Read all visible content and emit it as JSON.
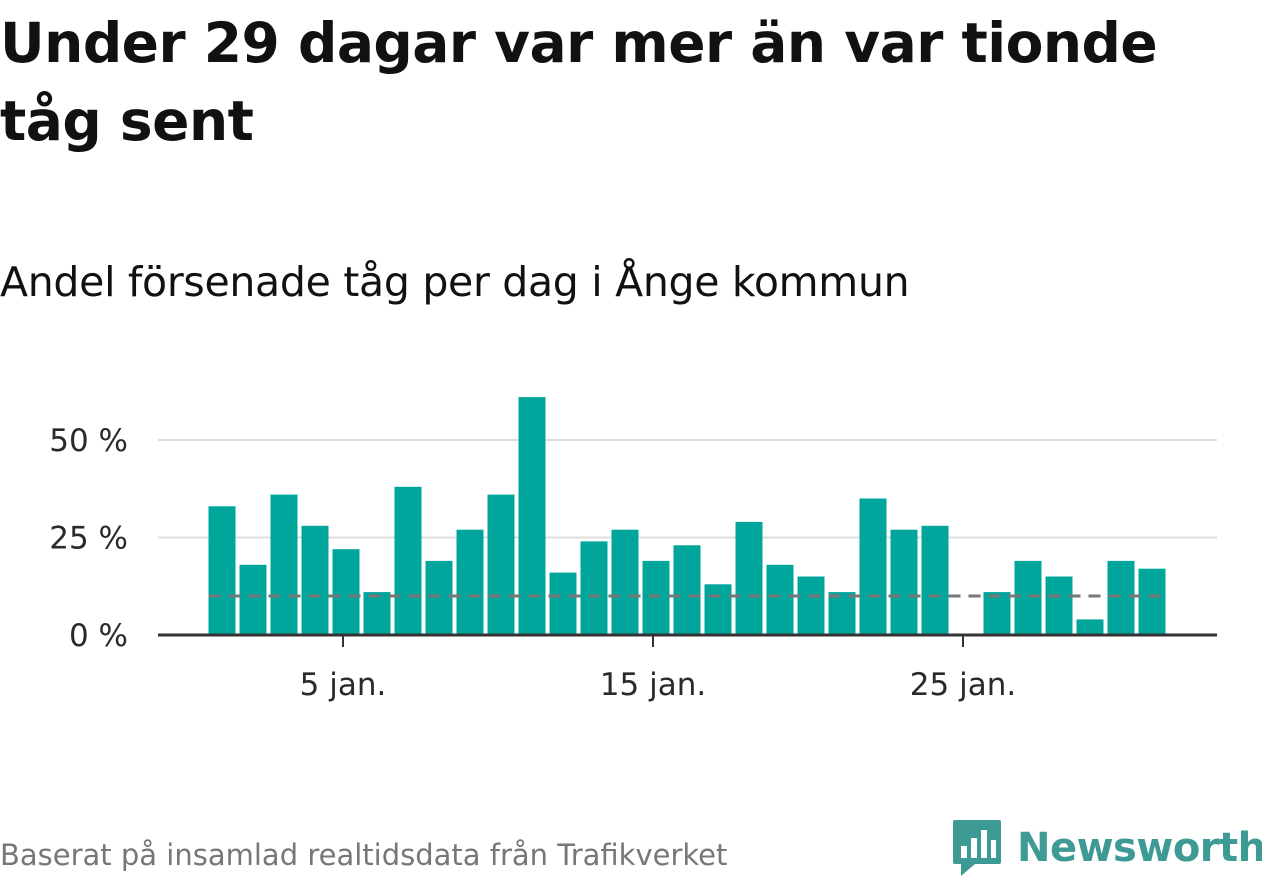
{
  "title": "Under 29 dagar var mer än var tionde tåg sent",
  "subtitle": "Andel försenade tåg per dag i Ånge kommun",
  "footer": "Baserat på insamlad realtidsdata från Trafikverket",
  "logo_text": "Newsworthy",
  "colors": {
    "bar": "#00a59b",
    "reference_line": "#777777",
    "grid": "#dddddd",
    "axis": "#333333",
    "logo": "#3d9a94"
  },
  "chart_data": {
    "type": "bar",
    "x_unit": "day of January",
    "x": [
      1,
      2,
      3,
      4,
      5,
      6,
      7,
      8,
      9,
      10,
      11,
      12,
      13,
      14,
      15,
      16,
      17,
      18,
      19,
      20,
      21,
      22,
      23,
      24,
      25,
      26,
      27,
      28,
      29,
      30,
      31
    ],
    "values": [
      33,
      18,
      36,
      28,
      22,
      11,
      38,
      19,
      27,
      36,
      61,
      16,
      24,
      27,
      19,
      23,
      13,
      29,
      18,
      15,
      11,
      35,
      27,
      28,
      null,
      11,
      19,
      15,
      4,
      19,
      17
    ],
    "reference_line": {
      "value": 10,
      "style": "dashed"
    },
    "ylim": [
      0,
      62
    ],
    "y_ticks": [
      {
        "value": 0,
        "label": "0 %"
      },
      {
        "value": 25,
        "label": "25 %"
      },
      {
        "value": 50,
        "label": "50 %"
      }
    ],
    "x_ticks": [
      {
        "value": 5,
        "label": "5 jan."
      },
      {
        "value": 15,
        "label": "15 jan."
      },
      {
        "value": 25,
        "label": "25 jan."
      }
    ],
    "grid": true,
    "legend": "none"
  }
}
